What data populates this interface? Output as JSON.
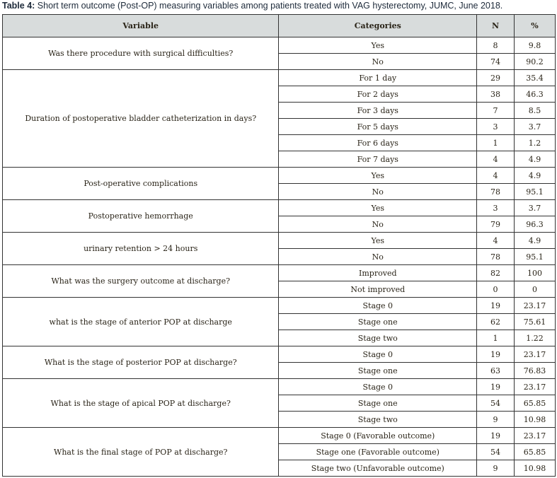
{
  "caption": {
    "label": "Table 4:",
    "text": " Short term outcome (Post-OP) measuring variables among patients treated with VAG hysterectomy, JUMC, June 2018."
  },
  "headers": [
    "Variable",
    "Categories",
    "N",
    "%"
  ],
  "groups": [
    {
      "variable": "Was there procedure with surgical difficulties?",
      "rows": [
        [
          "Yes",
          "8",
          "9.8"
        ],
        [
          "No",
          "74",
          "90.2"
        ]
      ]
    },
    {
      "variable": "Duration of postoperative bladder catheterization in days?",
      "rows": [
        [
          "For 1 day",
          "29",
          "35.4"
        ],
        [
          "For 2 days",
          "38",
          "46.3"
        ],
        [
          "For 3 days",
          "7",
          "8.5"
        ],
        [
          "For 5 days",
          "3",
          "3.7"
        ],
        [
          "For 6 days",
          "1",
          "1.2"
        ],
        [
          "For 7 days",
          "4",
          "4.9"
        ]
      ]
    },
    {
      "variable": "Post-operative complications",
      "rows": [
        [
          "Yes",
          "4",
          "4.9"
        ],
        [
          "No",
          "78",
          "95.1"
        ]
      ]
    },
    {
      "variable": "Postoperative hemorrhage",
      "rows": [
        [
          "Yes",
          "3",
          "3.7"
        ],
        [
          "No",
          "79",
          "96.3"
        ]
      ]
    },
    {
      "variable": "urinary retention > 24 hours",
      "rows": [
        [
          "Yes",
          "4",
          "4.9"
        ],
        [
          "No",
          "78",
          "95.1"
        ]
      ]
    },
    {
      "variable": "What was the surgery outcome at discharge?",
      "rows": [
        [
          "Improved",
          "82",
          "100"
        ],
        [
          "Not improved",
          "0",
          "0"
        ]
      ]
    },
    {
      "variable": "what is the stage of anterior POP at discharge",
      "rows": [
        [
          "Stage 0",
          "19",
          "23.17"
        ],
        [
          "Stage one",
          "62",
          "75.61"
        ],
        [
          "Stage two",
          "1",
          "1.22"
        ]
      ]
    },
    {
      "variable": "What is the stage of posterior POP at discharge?",
      "rows": [
        [
          "Stage 0",
          "19",
          "23.17"
        ],
        [
          "Stage one",
          "63",
          "76.83"
        ]
      ]
    },
    {
      "variable": "What is the stage of apical POP at discharge?",
      "rows": [
        [
          "Stage 0",
          "19",
          "23.17"
        ],
        [
          "Stage one",
          "54",
          "65.85"
        ],
        [
          "Stage two",
          "9",
          "10.98"
        ]
      ]
    },
    {
      "variable": "What is the final stage of POP at discharge?",
      "rows": [
        [
          "Stage 0 (Favorable outcome)",
          "19",
          "23.17"
        ],
        [
          "Stage one (Favorable outcome)",
          "54",
          "65.85"
        ],
        [
          "Stage two (Unfavorable outcome)",
          "9",
          "10.98"
        ]
      ]
    }
  ]
}
